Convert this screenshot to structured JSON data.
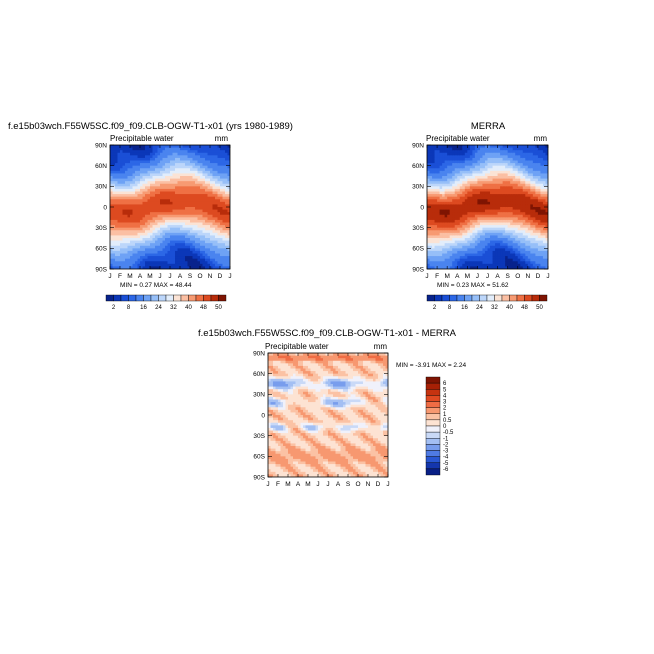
{
  "chart_data": [
    {
      "type": "heatmap",
      "title": "f.e15b03wch.F55W5SC.f09_f09.CLB-OGW-T1-x01 (yrs 1980-1989)",
      "subtitle": "Precipitable water",
      "units": "mm",
      "x_tick_labels": [
        "J",
        "F",
        "M",
        "A",
        "M",
        "J",
        "J",
        "A",
        "S",
        "O",
        "N",
        "D",
        "J"
      ],
      "y_tick_labels": [
        "90N",
        "60N",
        "30N",
        "0",
        "30S",
        "60S",
        "90S"
      ],
      "stats_text": "MIN =    0.27  MAX =   48.44",
      "min": 0.27,
      "max": 48.44,
      "colorbar_levels": [
        2,
        4,
        6,
        8,
        12,
        16,
        20,
        24,
        28,
        32,
        36,
        40,
        44,
        48,
        52
      ],
      "colorbar_labels": [
        "2",
        "8",
        "16",
        "24",
        "32",
        "40",
        "48",
        "50"
      ],
      "pattern": {
        "max_center_value": 47,
        "pole_value": 2,
        "itcz_lat_swing_deg": 9,
        "peak_month_index": 7.0
      }
    },
    {
      "type": "heatmap",
      "title": "MERRA",
      "subtitle": "Precipitable water",
      "units": "mm",
      "x_tick_labels": [
        "J",
        "F",
        "M",
        "A",
        "M",
        "J",
        "J",
        "A",
        "S",
        "O",
        "N",
        "D",
        "J"
      ],
      "y_tick_labels": [
        "90N",
        "60N",
        "30N",
        "0",
        "30S",
        "60S",
        "90S"
      ],
      "stats_text": "MIN =    0.23  MAX =   51.62",
      "min": 0.23,
      "max": 51.62,
      "colorbar_levels": [
        2,
        4,
        6,
        8,
        12,
        16,
        20,
        24,
        28,
        32,
        36,
        40,
        44,
        48,
        52
      ],
      "colorbar_labels": [
        "2",
        "8",
        "16",
        "24",
        "32",
        "40",
        "48",
        "50"
      ],
      "pattern": {
        "max_center_value": 51,
        "pole_value": 2,
        "itcz_lat_swing_deg": 9,
        "peak_month_index": 7.0
      }
    },
    {
      "type": "heatmap",
      "title": "f.e15b03wch.F55W5SC.f09_f09.CLB-OGW-T1-x01 - MERRA",
      "subtitle": "Precipitable water",
      "units": "mm",
      "x_tick_labels": [
        "J",
        "F",
        "M",
        "A",
        "M",
        "J",
        "J",
        "A",
        "S",
        "O",
        "N",
        "D",
        "J"
      ],
      "y_tick_labels": [
        "90N",
        "60N",
        "30N",
        "0",
        "30S",
        "60S",
        "90S"
      ],
      "stats_text": "MIN =  -3.91  MAX =    2.24",
      "min": -3.91,
      "max": 2.24,
      "colorbar_levels": [
        -6,
        -5,
        -4,
        -3,
        -2,
        -1,
        -0.5,
        0,
        0.5,
        1,
        2,
        3,
        4,
        5,
        6
      ],
      "colorbar_labels": [
        "6",
        "5",
        "4",
        "3",
        "2",
        "1",
        "0.5",
        "0",
        "-0.5",
        "-1",
        "-2",
        "-3",
        "-4",
        "-5",
        "-6"
      ]
    }
  ],
  "colors": {
    "blue_to_red_16": [
      "#08238c",
      "#0b37b8",
      "#1a4fd6",
      "#2c67e6",
      "#4a84ef",
      "#6ea2f5",
      "#96bff8",
      "#bcd6fa",
      "#e2edfb",
      "#fbe3d5",
      "#fbbfa3",
      "#f79a72",
      "#ef7044",
      "#dd4a20",
      "#b82c0a",
      "#7f1402"
    ],
    "diff_16": [
      "#7f1402",
      "#a72005",
      "#c63310",
      "#e04a22",
      "#ef6c44",
      "#f79870",
      "#fbc2a4",
      "#fde3d3",
      "#f0f1fb",
      "#c9d9f7",
      "#a3bff3",
      "#789ded",
      "#4f7be4",
      "#2957d3",
      "#1436ad",
      "#081f86"
    ]
  }
}
